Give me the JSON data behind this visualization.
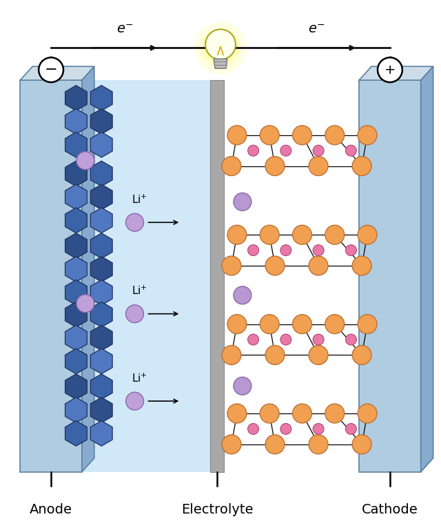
{
  "fig_width": 6.4,
  "fig_height": 7.65,
  "dpi": 100,
  "bg_color": "#ffffff",
  "hex_dark": "#2e4f8a",
  "hex_mid": "#3a63a8",
  "hex_light": "#5078c0",
  "hex_edge": "#1e3060",
  "li_color": "#c0a0d8",
  "li_edge": "#8868a8",
  "orange_color": "#f0a050",
  "orange_edge": "#c07030",
  "pink_color": "#e878a8",
  "pink_edge": "#b04878",
  "anode_face": "#b0cce0",
  "anode_side": "#88aacc",
  "anode_top": "#ccdde8",
  "anode_edge": "#5a80a0",
  "cathode_face": "#b0cce0",
  "cathode_side": "#88aacc",
  "cathode_top": "#ccdde8",
  "cathode_edge": "#5a80a0",
  "elec_color": "#d0e8f8",
  "sep_color": "#a8a8a8",
  "sep_edge": "#888888",
  "wire_color": "#111111",
  "label_anode": "Anode",
  "label_cathode": "Cathode",
  "label_electrolyte": "Electrolyte"
}
